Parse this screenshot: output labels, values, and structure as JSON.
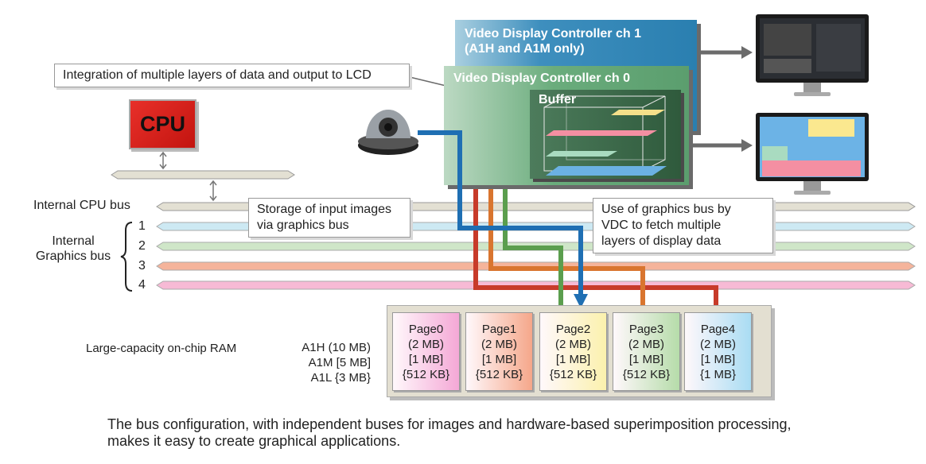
{
  "vdc1": {
    "line1": "Video Display Controller ch 1",
    "line2": "(A1H and A1M only)"
  },
  "vdc0": {
    "title": "Video Display Controller ch 0"
  },
  "buffer": {
    "title": "Buffer"
  },
  "cpu": {
    "label": "CPU"
  },
  "callouts": {
    "integration": "Integration of multiple layers of data and output to LCD",
    "storage_line1": "Storage of input images",
    "storage_line2": "via graphics bus",
    "vdc_line1": "Use of graphics bus by",
    "vdc_line2": "VDC to fetch multiple",
    "vdc_line3": "layers of display data"
  },
  "buses": {
    "cpu_bus": "Internal CPU bus",
    "graphics_line1": "Internal",
    "graphics_line2": "Graphics bus",
    "numbers": [
      "1",
      "2",
      "3",
      "4"
    ],
    "colors": [
      "#cde9f3",
      "#cfe6c8",
      "#f5b49b",
      "#f7bad5"
    ]
  },
  "ram": {
    "label": "Large-capacity on-chip RAM",
    "variants": [
      "A1H (10 MB)",
      "A1M [5 MB]",
      "A1L {3 MB}"
    ],
    "pages": [
      {
        "name": "Page0",
        "a1h": "(2 MB)",
        "a1m": "[1 MB]",
        "a1l": "{512 KB}",
        "color": "#f4a8d6"
      },
      {
        "name": "Page1",
        "a1h": "(2 MB)",
        "a1m": "[1 MB]",
        "a1l": "{512 KB}",
        "color": "#f5a78a"
      },
      {
        "name": "Page2",
        "a1h": "(2 MB)",
        "a1m": "[1 MB]",
        "a1l": "{512 KB}",
        "color": "#fbf1ad"
      },
      {
        "name": "Page3",
        "a1h": "(2 MB)",
        "a1m": "[1 MB]",
        "a1l": "{512 KB}",
        "color": "#b6dcaa"
      },
      {
        "name": "Page4",
        "a1h": "(2 MB)",
        "a1m": "[1 MB]",
        "a1l": "{1 MB}",
        "color": "#a9dcf3"
      }
    ]
  },
  "caption": {
    "line1": "The bus configuration, with independent buses for images and hardware-based superimposition processing,",
    "line2": "makes it easy to create graphical applications."
  }
}
